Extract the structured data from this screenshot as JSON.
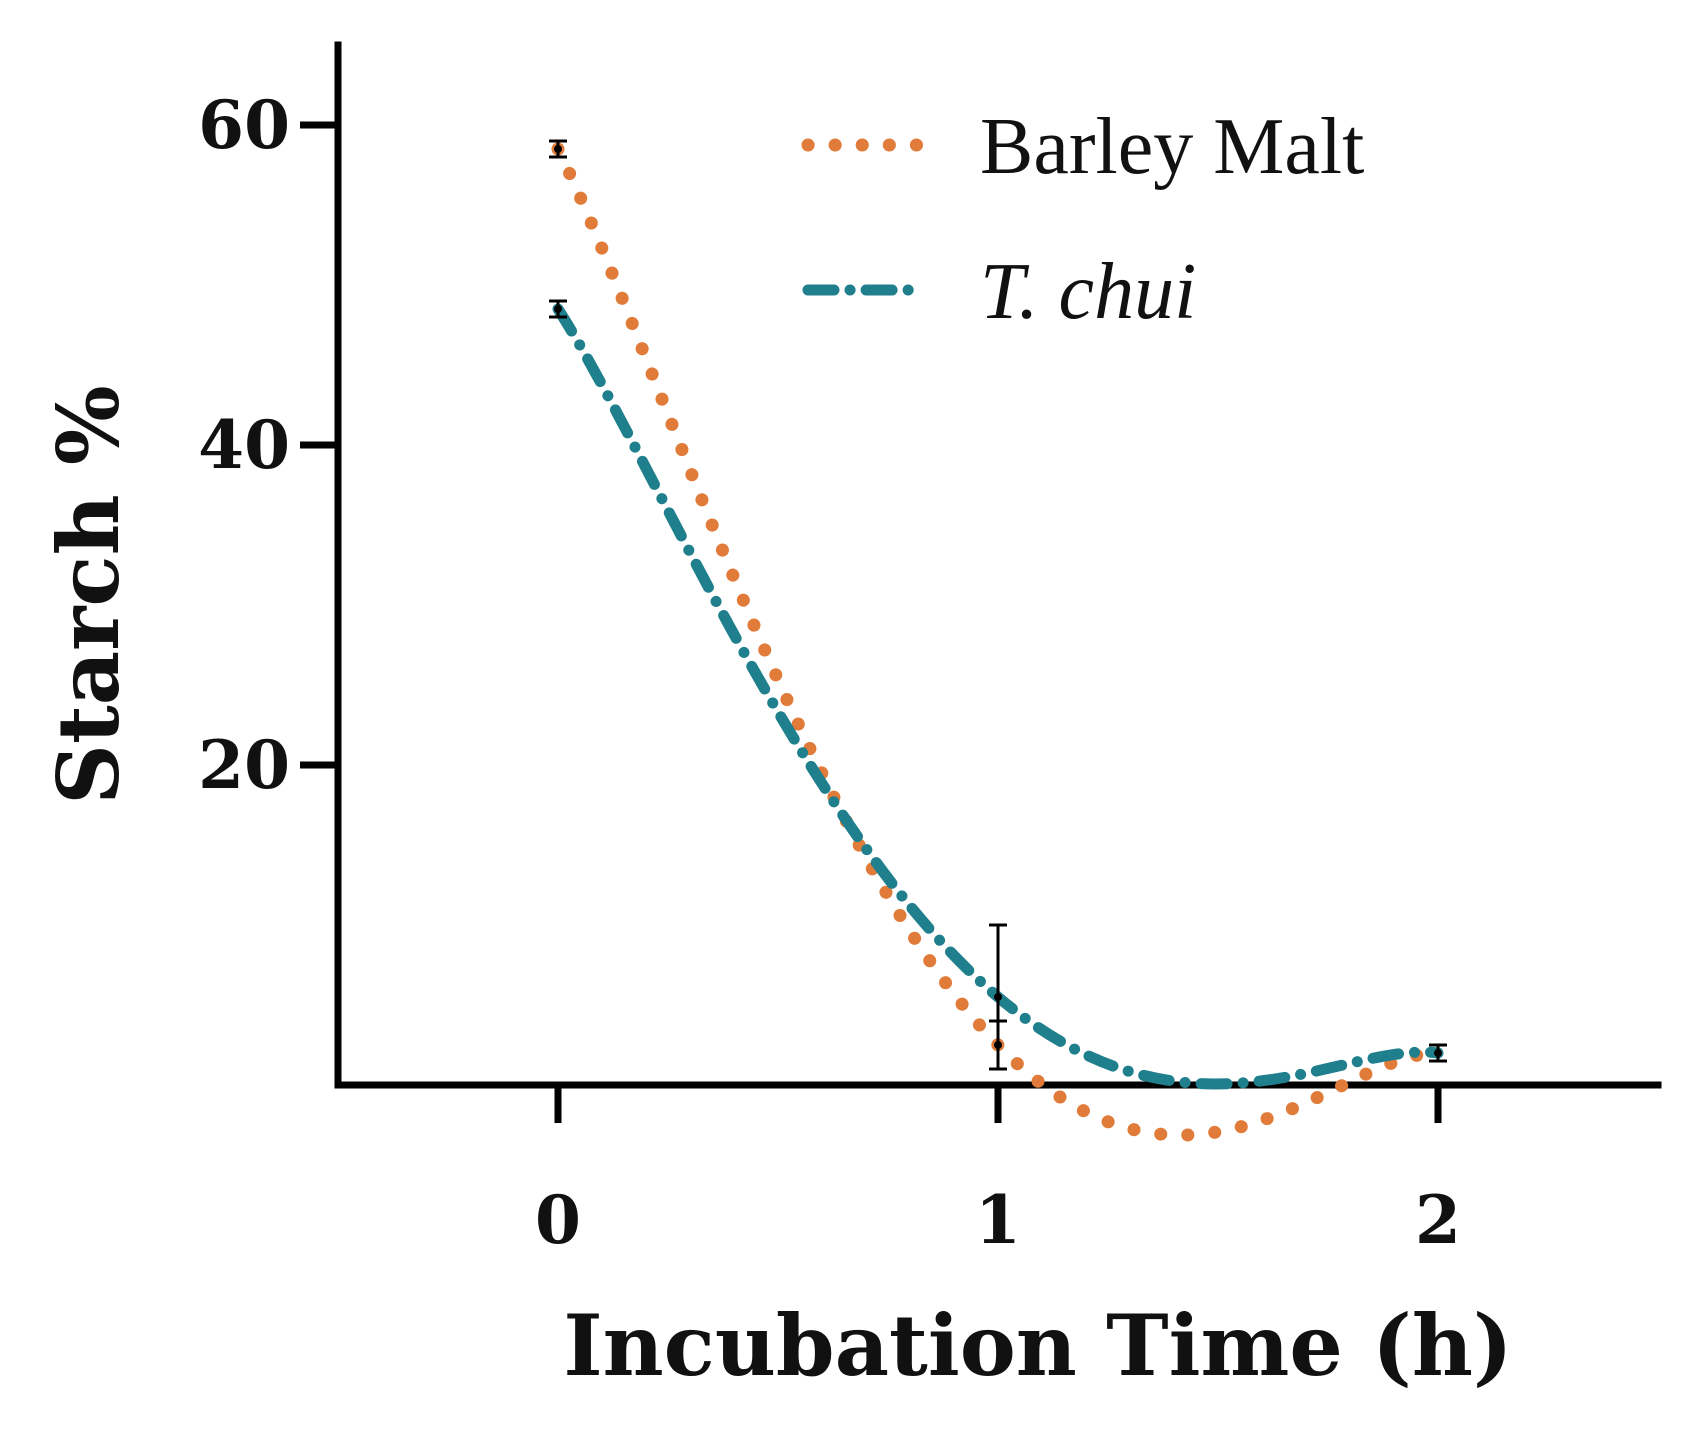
{
  "chart_data": {
    "type": "line",
    "xlabel": "Incubation Time (h)",
    "ylabel": "Starch %",
    "xlim": [
      -0.5,
      2.5
    ],
    "ylim": [
      0,
      65
    ],
    "x_ticks": [
      "0",
      "1",
      "2"
    ],
    "y_ticks": [
      "20",
      "40",
      "60"
    ],
    "grid": false,
    "legend": "top-right",
    "series": [
      {
        "name": "Barley Malt",
        "color": "#e07b39",
        "style": "dotted",
        "x": [
          0,
          1,
          2
        ],
        "values": [
          58.5,
          2.5,
          2.0
        ],
        "errors": [
          0.5,
          1.5,
          0.5
        ]
      },
      {
        "name": "T. chui",
        "color": "#1f7f8c",
        "style": "dash-dot",
        "x": [
          0,
          1,
          2
        ],
        "values": [
          48.5,
          5.5,
          2.0
        ],
        "errors": [
          0.5,
          4.5,
          0.5
        ]
      }
    ]
  }
}
